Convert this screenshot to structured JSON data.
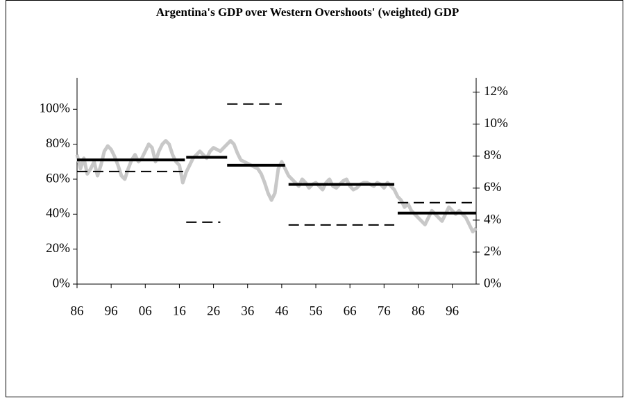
{
  "chart_data": {
    "type": "line",
    "title": "Argentina's GDP over Western Overshoots' (weighted) GDP",
    "x": [
      1886,
      1887,
      1888,
      1889,
      1890,
      1891,
      1892,
      1893,
      1894,
      1895,
      1896,
      1897,
      1898,
      1899,
      1900,
      1901,
      1902,
      1903,
      1904,
      1905,
      1906,
      1907,
      1908,
      1909,
      1910,
      1911,
      1912,
      1913,
      1914,
      1915,
      1916,
      1917,
      1918,
      1919,
      1920,
      1921,
      1922,
      1923,
      1924,
      1925,
      1926,
      1927,
      1928,
      1929,
      1930,
      1931,
      1932,
      1933,
      1934,
      1935,
      1936,
      1937,
      1938,
      1939,
      1940,
      1941,
      1942,
      1943,
      1944,
      1945,
      1946,
      1947,
      1948,
      1949,
      1950,
      1951,
      1952,
      1953,
      1954,
      1955,
      1956,
      1957,
      1958,
      1959,
      1960,
      1961,
      1962,
      1963,
      1964,
      1965,
      1966,
      1967,
      1968,
      1969,
      1970,
      1971,
      1972,
      1973,
      1974,
      1975,
      1976,
      1977,
      1978,
      1979,
      1980,
      1981,
      1982,
      1983,
      1984,
      1985,
      1986,
      1987,
      1988,
      1989,
      1990,
      1991,
      1992,
      1993,
      1994,
      1995,
      1996,
      1997,
      1998,
      1999,
      2000,
      2001,
      2002,
      2003
    ],
    "series": [
      {
        "color": "#c8c8c8",
        "axis": "y",
        "values": [
          74,
          66,
          72,
          63,
          66,
          70,
          62,
          68,
          76,
          79,
          77,
          73,
          68,
          62,
          60,
          66,
          71,
          74,
          70,
          72,
          76,
          80,
          78,
          70,
          76,
          80,
          82,
          80,
          74,
          70,
          68,
          58,
          64,
          68,
          72,
          74,
          76,
          74,
          72,
          76,
          78,
          77,
          76,
          78,
          80,
          82,
          80,
          75,
          71,
          70,
          69,
          68,
          67,
          66,
          63,
          58,
          52,
          48,
          52,
          66,
          70,
          66,
          62,
          60,
          58,
          56,
          60,
          58,
          55,
          57,
          58,
          56,
          54,
          58,
          60,
          56,
          55,
          57,
          59,
          60,
          56,
          54,
          55,
          57,
          58,
          58,
          57,
          56,
          58,
          57,
          55,
          58,
          56,
          54,
          50,
          48,
          44,
          46,
          42,
          40,
          38,
          36,
          34,
          38,
          42,
          40,
          38,
          36,
          40,
          44,
          42,
          40,
          42,
          40,
          38,
          34,
          30,
          32
        ]
      }
    ],
    "segments": [
      {
        "style": "solid",
        "color": "#000000",
        "axis": "y",
        "starts": [
          1886,
          1918,
          1930,
          1948,
          1980
        ],
        "ends": [
          1917.6,
          1930,
          1947,
          1979,
          2003
        ],
        "values": [
          71,
          72.5,
          68,
          57,
          40.6
        ]
      },
      {
        "style": "dashed",
        "color": "#000000",
        "axis": "y2",
        "starts": [
          1886,
          1918,
          1930,
          1948,
          1980
        ],
        "ends": [
          1917.6,
          1928,
          1946,
          1979,
          2003
        ],
        "values": [
          7.04,
          3.87,
          11.26,
          3.7,
          5.09
        ]
      }
    ],
    "xlim": [
      1886,
      2003
    ],
    "xticks": [
      {
        "value": 1886,
        "label": "86"
      },
      {
        "value": 1896,
        "label": "96"
      },
      {
        "value": 1906,
        "label": "06"
      },
      {
        "value": 1916,
        "label": "16"
      },
      {
        "value": 1926,
        "label": "26"
      },
      {
        "value": 1936,
        "label": "36"
      },
      {
        "value": 1946,
        "label": "46"
      },
      {
        "value": 1956,
        "label": "56"
      },
      {
        "value": 1966,
        "label": "66"
      },
      {
        "value": 1976,
        "label": "76"
      },
      {
        "value": 1986,
        "label": "86"
      },
      {
        "value": 1996,
        "label": "96"
      }
    ],
    "ylim": [
      0,
      118
    ],
    "yticks": [
      {
        "value": 0,
        "label": "0%"
      },
      {
        "value": 20,
        "label": "20%"
      },
      {
        "value": 40,
        "label": "40%"
      },
      {
        "value": 60,
        "label": "60%"
      },
      {
        "value": 80,
        "label": "80%"
      },
      {
        "value": 100,
        "label": "100%"
      }
    ],
    "y2lim": [
      0,
      12.9
    ],
    "y2ticks": [
      {
        "value": 0,
        "label": "0%"
      },
      {
        "value": 2,
        "label": "2%"
      },
      {
        "value": 4,
        "label": "4%"
      },
      {
        "value": 6,
        "label": "6%"
      },
      {
        "value": 8,
        "label": "8%"
      },
      {
        "value": 10,
        "label": "10%"
      },
      {
        "value": 12,
        "label": "12%"
      }
    ]
  }
}
